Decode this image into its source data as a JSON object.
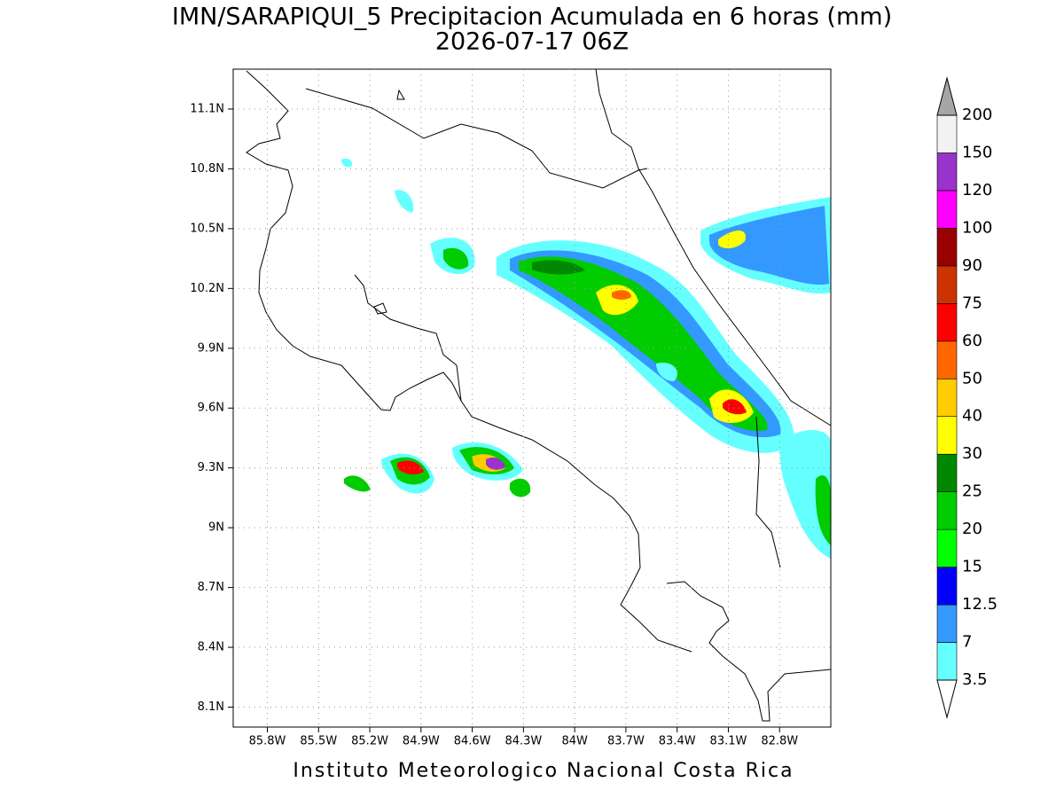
{
  "map": {
    "title": "IMN/SARAPIQUI_5 Precipitacion Acumulada en 6 horas (mm)",
    "subtitle": "2026-07-17 06Z",
    "footer": "Instituto Meteorologico Nacional Costa Rica",
    "xlim": [
      -86.0,
      -82.5
    ],
    "ylim": [
      8.0,
      11.3
    ],
    "grid": true,
    "xticks": [
      {
        "value": -85.8,
        "label": "85.8W"
      },
      {
        "value": -85.5,
        "label": "85.5W"
      },
      {
        "value": -85.2,
        "label": "85.2W"
      },
      {
        "value": -84.9,
        "label": "84.9W"
      },
      {
        "value": -84.6,
        "label": "84.6W"
      },
      {
        "value": -84.3,
        "label": "84.3W"
      },
      {
        "value": -84.0,
        "label": "84W"
      },
      {
        "value": -83.7,
        "label": "83.7W"
      },
      {
        "value": -83.4,
        "label": "83.4W"
      },
      {
        "value": -83.1,
        "label": "83.1W"
      },
      {
        "value": -82.8,
        "label": "82.8W"
      }
    ],
    "yticks": [
      {
        "value": 8.1,
        "label": "8.1N"
      },
      {
        "value": 8.4,
        "label": "8.4N"
      },
      {
        "value": 8.7,
        "label": "8.7N"
      },
      {
        "value": 9.0,
        "label": "9N"
      },
      {
        "value": 9.3,
        "label": "9.3N"
      },
      {
        "value": 9.6,
        "label": "9.6N"
      },
      {
        "value": 9.9,
        "label": "9.9N"
      },
      {
        "value": 10.2,
        "label": "10.2N"
      },
      {
        "value": 10.5,
        "label": "10.5N"
      },
      {
        "value": 10.8,
        "label": "10.8N"
      },
      {
        "value": 11.1,
        "label": "11.1N"
      }
    ],
    "colorbar": {
      "levels": [
        3.5,
        7,
        12.5,
        15,
        20,
        25,
        30,
        40,
        50,
        60,
        75,
        90,
        100,
        120,
        150,
        200
      ],
      "colors": [
        "#66ffff",
        "#3399ff",
        "#0000ff",
        "#00ff00",
        "#00cc00",
        "#008800",
        "#ffff00",
        "#ffcc00",
        "#ff6600",
        "#ff0000",
        "#cc3300",
        "#990000",
        "#ff00ff",
        "#9933cc",
        "#f2f2f2"
      ],
      "over_color": "#a6a6a6",
      "under_color": "#ffffff"
    }
  }
}
